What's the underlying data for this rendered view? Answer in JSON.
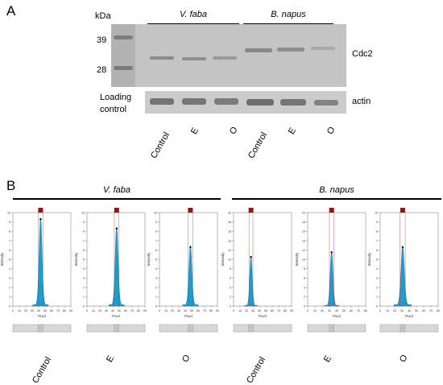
{
  "panel_a": {
    "letter": "A",
    "kda_label": "kDa",
    "marker_39": "39",
    "marker_28": "28",
    "group_vfaba": "V. faba",
    "group_bnapus": "B. napus",
    "protein_label": "Cdc2",
    "loading_label_1": "Loading",
    "loading_label_2": "control",
    "actin_label": "actin",
    "lanes": [
      "Control",
      "E",
      "O",
      "Control",
      "E",
      "O"
    ]
  },
  "panel_b": {
    "letter": "B",
    "group_vfaba": "V. faba",
    "group_bnapus": "B. napus",
    "y_axis_label": "Intensity",
    "x_axis_label": "Pixel",
    "lanes": [
      "Control",
      "E",
      "O",
      "Control",
      "E",
      "O"
    ]
  },
  "chart_data": [
    {
      "type": "area",
      "title": "",
      "xlabel": "Pixel",
      "ylabel": "Intensity",
      "xlim": [
        0,
        90
      ],
      "ylim": [
        0,
        10
      ],
      "x_ticks": [
        0,
        10,
        20,
        30,
        40,
        50,
        60,
        70,
        80,
        90
      ],
      "y_ticks": [
        0,
        1,
        2,
        3,
        4,
        5,
        6,
        7,
        8,
        9,
        10
      ],
      "peak_x": 43,
      "peak_y": 9.3,
      "peak_width": 6
    },
    {
      "type": "area",
      "title": "",
      "xlabel": "Pixel",
      "ylabel": "Intensity",
      "xlim": [
        0,
        90
      ],
      "ylim": [
        0,
        10
      ],
      "x_ticks": [
        0,
        10,
        20,
        30,
        40,
        50,
        60,
        70,
        80,
        90
      ],
      "y_ticks": [
        0,
        1,
        2,
        3,
        4,
        5,
        6,
        7,
        8,
        9,
        10
      ],
      "peak_x": 46,
      "peak_y": 8.3,
      "peak_width": 6
    },
    {
      "type": "area",
      "title": "",
      "xlabel": "Pixel",
      "ylabel": "Intensity",
      "xlim": [
        0,
        90
      ],
      "ylim": [
        0,
        10
      ],
      "x_ticks": [
        0,
        10,
        20,
        30,
        40,
        50,
        60,
        70,
        80,
        90
      ],
      "y_ticks": [
        0,
        1,
        2,
        3,
        4,
        5,
        6,
        7,
        8,
        9,
        10
      ],
      "peak_x": 48,
      "peak_y": 6.3,
      "peak_width": 6
    },
    {
      "type": "area",
      "title": "",
      "xlabel": "Pixel",
      "ylabel": "Intensity",
      "xlim": [
        0,
        90
      ],
      "ylim": [
        0,
        20
      ],
      "x_ticks": [
        0,
        10,
        20,
        30,
        40,
        50,
        60,
        70,
        80,
        90
      ],
      "y_ticks": [
        0,
        2,
        4,
        6,
        8,
        10,
        12,
        14,
        16,
        18,
        20
      ],
      "peak_x": 27,
      "peak_y": 10.5,
      "peak_width": 5
    },
    {
      "type": "area",
      "title": "",
      "xlabel": "Pixel",
      "ylabel": "Intensity",
      "xlim": [
        0,
        80
      ],
      "ylim": [
        0,
        20
      ],
      "x_ticks": [
        0,
        10,
        20,
        30,
        40,
        50,
        60,
        70,
        80
      ],
      "y_ticks": [
        0,
        2,
        4,
        6,
        8,
        10,
        12,
        14,
        16,
        18,
        20
      ],
      "peak_x": 33,
      "peak_y": 11.5,
      "peak_width": 5
    },
    {
      "type": "area",
      "title": "",
      "xlabel": "Pixel",
      "ylabel": "Intensity",
      "xlim": [
        0,
        80
      ],
      "ylim": [
        0,
        10
      ],
      "x_ticks": [
        0,
        10,
        20,
        30,
        40,
        50,
        60,
        70,
        80
      ],
      "y_ticks": [
        0,
        1,
        2,
        3,
        4,
        5,
        6,
        7,
        8,
        9,
        10
      ],
      "peak_x": 31,
      "peak_y": 6.3,
      "peak_width": 6
    }
  ]
}
